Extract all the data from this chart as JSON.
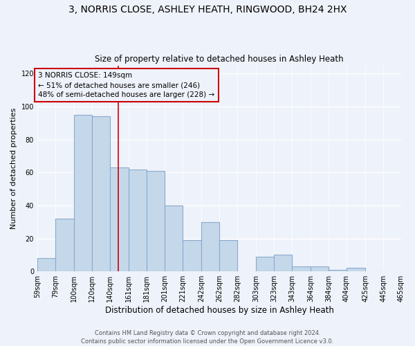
{
  "title": "3, NORRIS CLOSE, ASHLEY HEATH, RINGWOOD, BH24 2HX",
  "subtitle": "Size of property relative to detached houses in Ashley Heath",
  "xlabel": "Distribution of detached houses by size in Ashley Heath",
  "ylabel": "Number of detached properties",
  "bar_color": "#c5d8ea",
  "bar_edge_color": "#88aacc",
  "background_color": "#eef2fa",
  "grid_color": "#ffffff",
  "bins": [
    59,
    79,
    100,
    120,
    140,
    161,
    181,
    201,
    221,
    242,
    262,
    282,
    303,
    323,
    343,
    364,
    384,
    404,
    425,
    445,
    465
  ],
  "bin_labels": [
    "59sqm",
    "79sqm",
    "100sqm",
    "120sqm",
    "140sqm",
    "161sqm",
    "181sqm",
    "201sqm",
    "221sqm",
    "242sqm",
    "262sqm",
    "282sqm",
    "303sqm",
    "323sqm",
    "343sqm",
    "364sqm",
    "384sqm",
    "404sqm",
    "425sqm",
    "445sqm",
    "465sqm"
  ],
  "values": [
    8,
    32,
    95,
    94,
    63,
    62,
    61,
    40,
    19,
    30,
    19,
    0,
    9,
    10,
    3,
    3,
    1,
    2,
    0,
    0
  ],
  "ylim": [
    0,
    125
  ],
  "yticks": [
    0,
    20,
    40,
    60,
    80,
    100,
    120
  ],
  "vline_x": 149,
  "vline_color": "#cc0000",
  "annotation_title": "3 NORRIS CLOSE: 149sqm",
  "annotation_line1": "← 51% of detached houses are smaller (246)",
  "annotation_line2": "48% of semi-detached houses are larger (228) →",
  "annotation_box_color": "#cc0000",
  "footer1": "Contains HM Land Registry data © Crown copyright and database right 2024.",
  "footer2": "Contains public sector information licensed under the Open Government Licence v3.0.",
  "title_fontsize": 10,
  "subtitle_fontsize": 8.5,
  "xlabel_fontsize": 8.5,
  "ylabel_fontsize": 8,
  "tick_fontsize": 7,
  "annotation_fontsize": 7.5,
  "footer_fontsize": 6
}
